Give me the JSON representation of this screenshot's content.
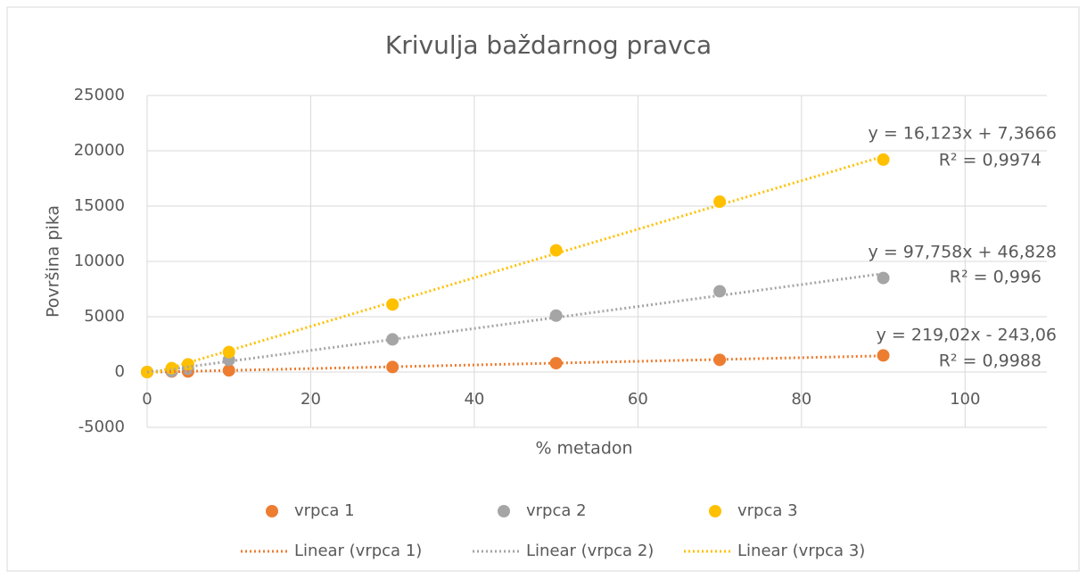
{
  "chart_data": {
    "type": "scatter",
    "title": "Krivulja baždarnog pravca",
    "x_label": "% metadon",
    "y_label": "Površina pika",
    "xlim": [
      0,
      110
    ],
    "xticks": [
      0,
      20,
      40,
      60,
      80,
      100
    ],
    "ylim": [
      -5000,
      25000
    ],
    "yticks": [
      -5000,
      0,
      5000,
      10000,
      15000,
      20000,
      25000
    ],
    "grid": true,
    "legend": "bottom",
    "x": [
      0,
      3,
      5,
      10,
      30,
      50,
      70,
      90
    ],
    "series": [
      {
        "name": "vrpca 1",
        "color": "#ED7D31",
        "values": [
          0,
          50,
          50,
          150,
          450,
          800,
          1100,
          1500
        ],
        "trendline": {
          "name": "Linear (vrpca 1)",
          "equation": "y = 16,123x + 7,3666",
          "r2": "R² = 0,9974"
        }
      },
      {
        "name": "vrpca 2",
        "color": "#A5A5A5",
        "values": [
          0,
          100,
          300,
          1100,
          2950,
          5100,
          7300,
          8500
        ],
        "trendline": {
          "name": "Linear (vrpca 2)",
          "equation": "y = 97,758x + 46,828",
          "r2": "R² = 0,996"
        }
      },
      {
        "name": "vrpca 3",
        "color": "#FFC000",
        "values": [
          0,
          350,
          700,
          1800,
          6100,
          11000,
          15400,
          19200
        ],
        "trendline": {
          "name": "Linear (vrpca 3)",
          "equation": "y = 219,02x - 243,06",
          "r2": "R² = 0,9988"
        }
      }
    ]
  }
}
